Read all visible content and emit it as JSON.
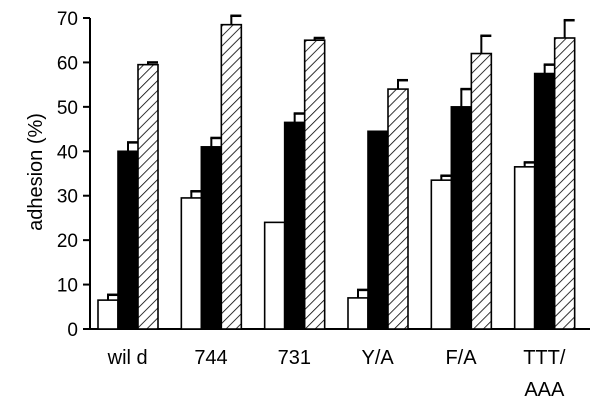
{
  "chart_data": {
    "type": "bar",
    "ylabel": "adhesion (%)",
    "ylim": [
      0,
      70
    ],
    "yticks": [
      "0",
      "10",
      "20",
      "30",
      "40",
      "50",
      "60",
      "70"
    ],
    "categories": [
      {
        "lines": [
          "wil d"
        ]
      },
      {
        "lines": [
          "744"
        ]
      },
      {
        "lines": [
          "731"
        ]
      },
      {
        "lines": [
          "Y/A"
        ]
      },
      {
        "lines": [
          "F/A"
        ]
      },
      {
        "lines": [
          "TTT/",
          "AAA"
        ]
      }
    ],
    "series": [
      {
        "fill": "white",
        "values": [
          6.5,
          29.5,
          24,
          7,
          33.5,
          36.5
        ],
        "errors": [
          1.2,
          1.5,
          0,
          1.8,
          1,
          1
        ]
      },
      {
        "fill": "black",
        "values": [
          40,
          41,
          46.5,
          44.5,
          50,
          57.5
        ],
        "errors": [
          2,
          2,
          2,
          0,
          4,
          2
        ]
      },
      {
        "fill": "hatched",
        "values": [
          59.5,
          68.5,
          65,
          54,
          62,
          65.5
        ],
        "errors": [
          0.5,
          2,
          0.5,
          2,
          4,
          4
        ]
      }
    ],
    "grid": false,
    "legend": "none",
    "colors": {
      "bar_stroke": "#000000",
      "dark": "#000000",
      "light": "#ffffff"
    }
  }
}
